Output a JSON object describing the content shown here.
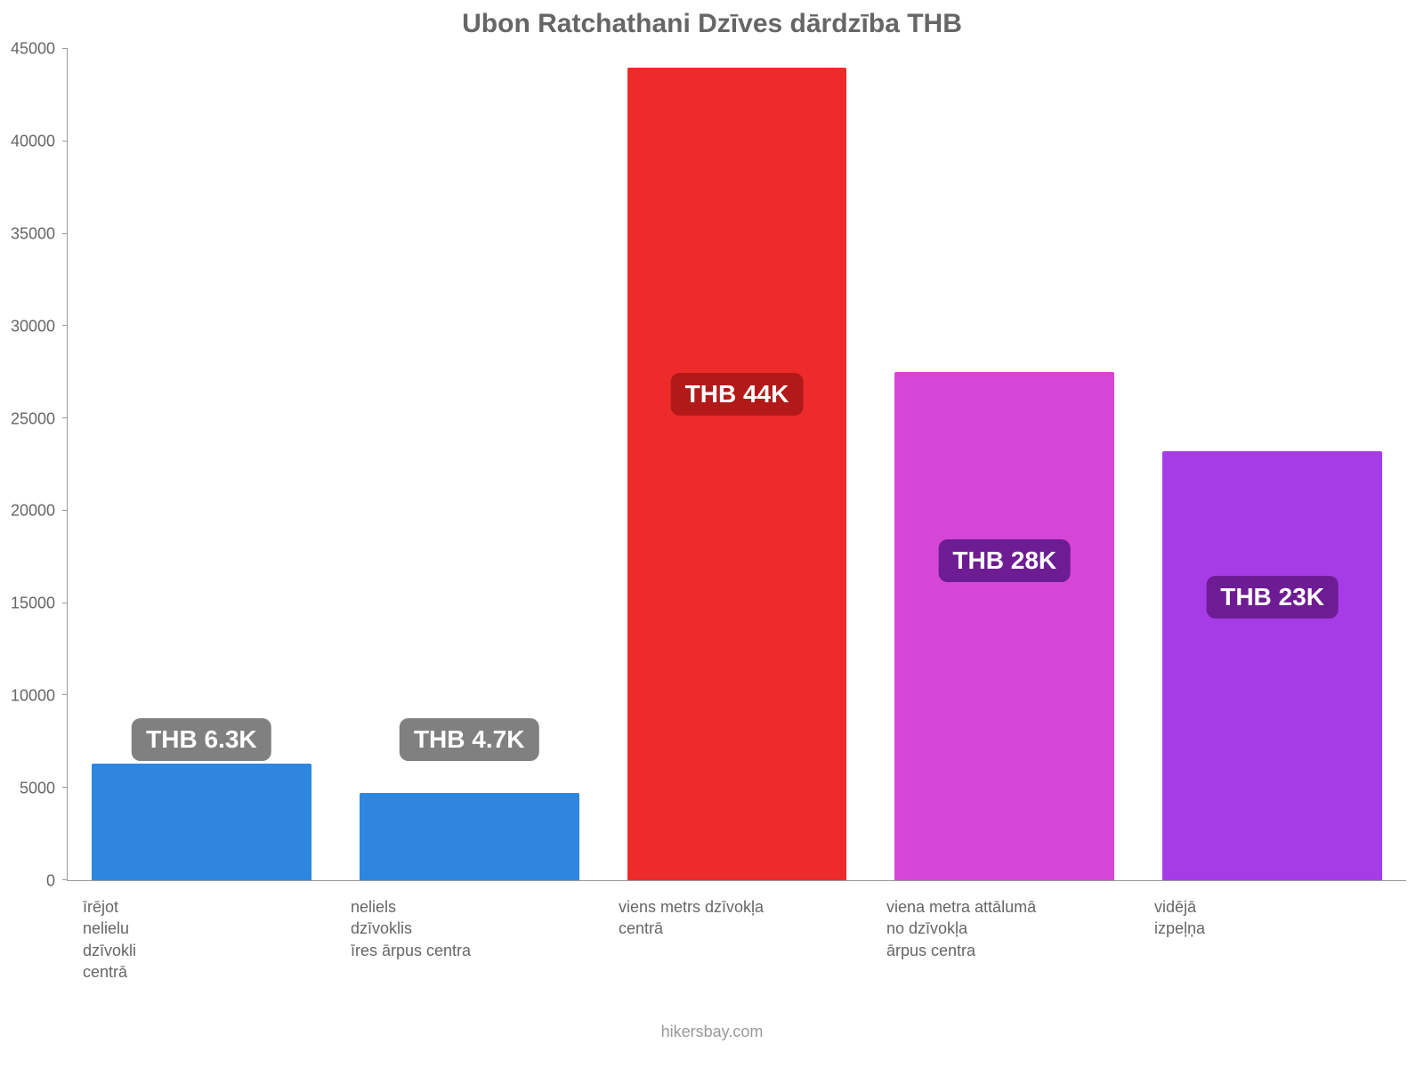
{
  "chart": {
    "type": "bar",
    "title": "Ubon Ratchathani Dzīves dārdzība THB",
    "title_fontsize": 30,
    "title_color": "#666666",
    "background_color": "#ffffff",
    "axis_color": "#999999",
    "tick_label_color": "#666666",
    "tick_label_fontsize": 18,
    "x_label_fontsize": 18,
    "x_label_color": "#666666",
    "yaxis": {
      "min": 0,
      "max": 45000,
      "step": 5000,
      "ticks": [
        0,
        5000,
        10000,
        15000,
        20000,
        25000,
        30000,
        35000,
        40000,
        45000
      ]
    },
    "bar_width_pct": 82,
    "bars": [
      {
        "category": "īrējot\nnelielu\ndzīvokli\ncentrā",
        "value": 6300,
        "value_label": "THB 6.3K",
        "fill": "#2e86de",
        "label_bg": "#808080",
        "label_fontsize": 28,
        "label_y_value": 5300
      },
      {
        "category": "neliels\ndzīvoklis\nīres ārpus centra",
        "value": 4700,
        "value_label": "THB 4.7K",
        "fill": "#2e86de",
        "label_bg": "#808080",
        "label_fontsize": 28,
        "label_y_value": 5300
      },
      {
        "category": "viens metrs dzīvokļa\ncentrā",
        "value": 44000,
        "value_label": "THB 44K",
        "fill": "#ee2b2b",
        "label_bg": "#b31919",
        "label_fontsize": 28,
        "label_y_value": 24000
      },
      {
        "category": "viena metra attālumā\nno dzīvokļa\nārpus centra",
        "value": 27500,
        "value_label": "THB 28K",
        "fill": "#d646d6",
        "label_bg": "#6d1c93",
        "label_fontsize": 28,
        "label_y_value": 15000
      },
      {
        "category": "vidējā\nizpeļņa",
        "value": 23200,
        "value_label": "THB 23K",
        "fill": "#a53ce6",
        "label_bg": "#6d1c93",
        "label_fontsize": 28,
        "label_y_value": 13000
      }
    ],
    "footer": "hikersbay.com",
    "footer_color": "#999999",
    "footer_fontsize": 18
  }
}
